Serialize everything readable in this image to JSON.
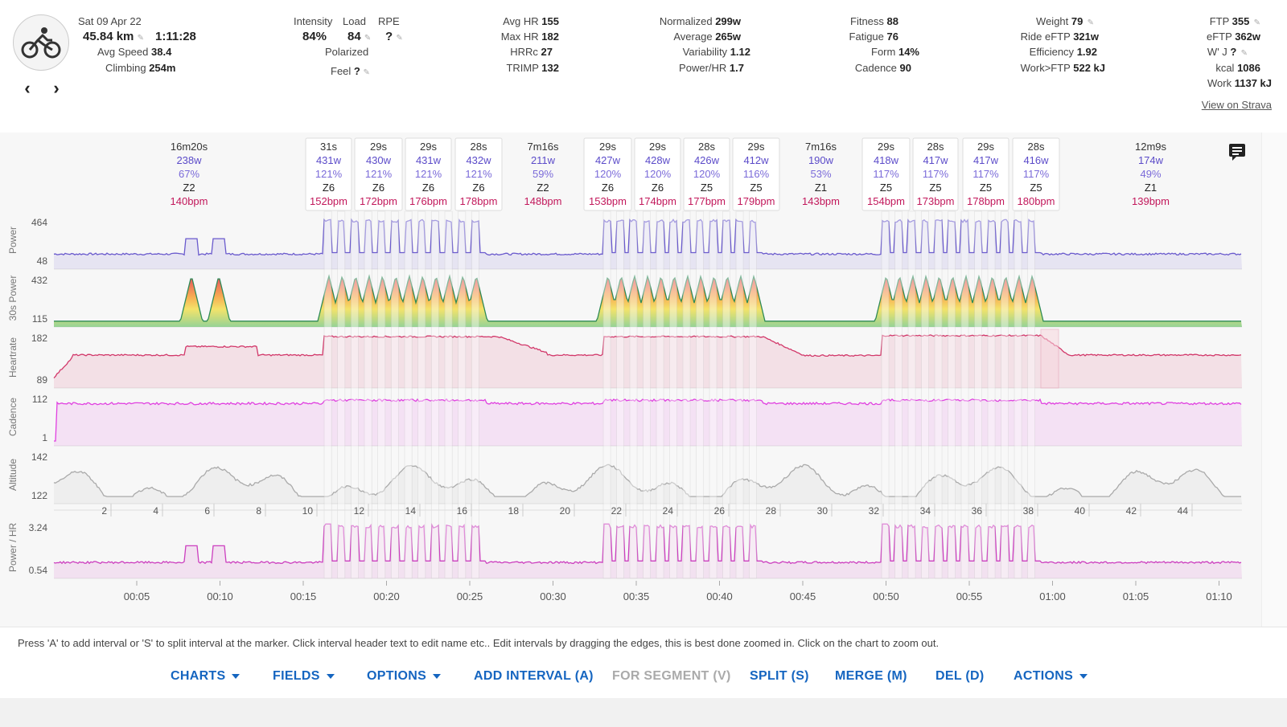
{
  "ride": {
    "date": "Sat 09 Apr 22",
    "distance": "45.84 km",
    "duration": "1:11:28",
    "avg_speed_label": "Avg Speed",
    "avg_speed": "38.4",
    "climbing_label": "Climbing",
    "climbing": "254m"
  },
  "load": {
    "intensity_label": "Intensity",
    "intensity": "84%",
    "load_label": "Load",
    "load": "84",
    "rpe_label": "RPE",
    "rpe": "?",
    "polarized": "Polarized",
    "feel_label": "Feel",
    "feel": "?"
  },
  "hr": {
    "avg_hr_label": "Avg HR",
    "avg_hr": "155",
    "max_hr_label": "Max HR",
    "max_hr": "182",
    "hrrc_label": "HRRc",
    "hrrc": "27",
    "trimp_label": "TRIMP",
    "trimp": "132"
  },
  "power": {
    "normalized_label": "Normalized",
    "normalized": "299w",
    "average_label": "Average",
    "average": "265w",
    "variability_label": "Variability",
    "variability": "1.12",
    "power_hr_label": "Power/HR",
    "power_hr": "1.7"
  },
  "fitness": {
    "fitness_label": "Fitness",
    "fitness": "88",
    "fatigue_label": "Fatigue",
    "fatigue": "76",
    "form_label": "Form",
    "form": "14%",
    "cadence_label": "Cadence",
    "cadence": "90"
  },
  "weight": {
    "weight_label": "Weight",
    "weight": "79",
    "ride_eftp_label": "Ride eFTP",
    "ride_eftp": "321w",
    "efficiency_label": "Efficiency",
    "efficiency": "1.92",
    "work_ftp_label": "Work>FTP",
    "work_ftp": "522 kJ"
  },
  "ftp": {
    "ftp_label": "FTP",
    "ftp": "355",
    "eftp_label": "eFTP",
    "eftp": "362w",
    "wj_label": "W' J",
    "wj": "?",
    "kcal_label": "kcal",
    "kcal": "1086",
    "work_label": "Work",
    "work": "1137 kJ",
    "strava_link": "View on Strava"
  },
  "intervals": [
    {
      "dur": "16m20s",
      "w": "238w",
      "pct": "67%",
      "zone": "Z2",
      "bpm": "140bpm",
      "work": false
    },
    {
      "dur": "31s",
      "w": "431w",
      "pct": "121%",
      "zone": "Z6",
      "bpm": "152bpm",
      "work": true
    },
    {
      "dur": "29s",
      "w": "430w",
      "pct": "121%",
      "zone": "Z6",
      "bpm": "172bpm",
      "work": true
    },
    {
      "dur": "29s",
      "w": "431w",
      "pct": "121%",
      "zone": "Z6",
      "bpm": "176bpm",
      "work": true
    },
    {
      "dur": "28s",
      "w": "432w",
      "pct": "121%",
      "zone": "Z6",
      "bpm": "178bpm",
      "work": true
    },
    {
      "dur": "7m16s",
      "w": "211w",
      "pct": "59%",
      "zone": "Z2",
      "bpm": "148bpm",
      "work": false
    },
    {
      "dur": "29s",
      "w": "427w",
      "pct": "120%",
      "zone": "Z6",
      "bpm": "153bpm",
      "work": true
    },
    {
      "dur": "29s",
      "w": "428w",
      "pct": "120%",
      "zone": "Z6",
      "bpm": "174bpm",
      "work": true
    },
    {
      "dur": "28s",
      "w": "426w",
      "pct": "120%",
      "zone": "Z5",
      "bpm": "177bpm",
      "work": true
    },
    {
      "dur": "29s",
      "w": "412w",
      "pct": "116%",
      "zone": "Z5",
      "bpm": "179bpm",
      "work": true
    },
    {
      "dur": "7m16s",
      "w": "190w",
      "pct": "53%",
      "zone": "Z1",
      "bpm": "143bpm",
      "work": false
    },
    {
      "dur": "29s",
      "w": "418w",
      "pct": "117%",
      "zone": "Z5",
      "bpm": "154bpm",
      "work": true
    },
    {
      "dur": "28s",
      "w": "417w",
      "pct": "117%",
      "zone": "Z5",
      "bpm": "173bpm",
      "work": true
    },
    {
      "dur": "29s",
      "w": "417w",
      "pct": "117%",
      "zone": "Z5",
      "bpm": "178bpm",
      "work": true
    },
    {
      "dur": "28s",
      "w": "416w",
      "pct": "117%",
      "zone": "Z5",
      "bpm": "180bpm",
      "work": true
    },
    {
      "dur": "12m9s",
      "w": "174w",
      "pct": "49%",
      "zone": "Z1",
      "bpm": "139bpm",
      "work": false
    }
  ],
  "charts": {
    "power": {
      "label": "Power",
      "max": "464",
      "min": "48",
      "color": "#6a5acd"
    },
    "power30": {
      "label": "30s Power",
      "max": "432",
      "min": "115"
    },
    "heartrate": {
      "label": "Heartrate",
      "max": "182",
      "min": "89",
      "color": "#d2386a"
    },
    "cadence": {
      "label": "Cadence",
      "max": "112",
      "min": "1",
      "color": "#e040e0"
    },
    "altitude": {
      "label": "Altitude",
      "max": "142",
      "min": "122",
      "color": "#aaaaaa"
    },
    "power_hr": {
      "label": "Power / HR",
      "max": "3.24",
      "min": "0.54",
      "color": "#cc3fbf"
    },
    "distance_ticks": [
      "2",
      "4",
      "6",
      "8",
      "10",
      "12",
      "14",
      "16",
      "18",
      "20",
      "22",
      "24",
      "26",
      "28",
      "30",
      "32",
      "34",
      "36",
      "38",
      "40",
      "42",
      "44"
    ],
    "time_ticks": [
      "00:05",
      "00:10",
      "00:15",
      "00:20",
      "00:25",
      "00:30",
      "00:35",
      "00:40",
      "00:45",
      "00:50",
      "00:55",
      "01:00",
      "01:05",
      "01:10"
    ]
  },
  "footer": {
    "hint": "Press 'A' to add interval or 'S' to split interval at the marker. Click interval header text to edit name etc.. Edit intervals by dragging the edges, this is best done zoomed in. Click on the chart to zoom out.",
    "buttons": {
      "charts": "CHARTS",
      "fields": "FIELDS",
      "options": "OPTIONS",
      "add_interval": "ADD INTERVAL (A)",
      "for_segment": "FOR SEGMENT (V)",
      "split": "SPLIT (S)",
      "merge": "MERGE (M)",
      "del": "DEL (D)",
      "actions": "ACTIONS"
    }
  }
}
